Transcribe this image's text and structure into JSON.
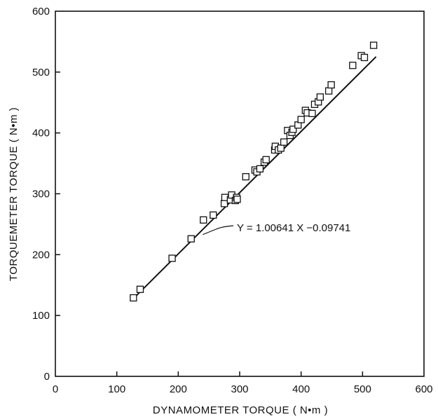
{
  "chart_data": {
    "type": "scatter",
    "xlabel": "DYNAMOMETER TORQUE ( N•m )",
    "ylabel": "TORQUEMETER TORQUE ( N•m )",
    "xlim": [
      0,
      600
    ],
    "ylim": [
      0,
      600
    ],
    "x_ticks": [
      0,
      100,
      200,
      300,
      400,
      500,
      600
    ],
    "y_ticks": [
      0,
      100,
      200,
      300,
      400,
      500,
      600
    ],
    "x_tick_labels": [
      "0",
      "100",
      "200",
      "300",
      "400",
      "500",
      "600"
    ],
    "y_tick_labels": [
      "0",
      "100",
      "200",
      "300",
      "400",
      "500",
      "600"
    ],
    "grid": false,
    "marker": "open-square",
    "points": [
      [
        127,
        129
      ],
      [
        138,
        143
      ],
      [
        190,
        194
      ],
      [
        221,
        226
      ],
      [
        241,
        257
      ],
      [
        257,
        265
      ],
      [
        275,
        284
      ],
      [
        276,
        294
      ],
      [
        285,
        290
      ],
      [
        287,
        298
      ],
      [
        293,
        289
      ],
      [
        295,
        294
      ],
      [
        296,
        291
      ],
      [
        310,
        328
      ],
      [
        325,
        339
      ],
      [
        328,
        336
      ],
      [
        333,
        341
      ],
      [
        340,
        352
      ],
      [
        343,
        356
      ],
      [
        357,
        372
      ],
      [
        358,
        378
      ],
      [
        363,
        372
      ],
      [
        367,
        375
      ],
      [
        372,
        385
      ],
      [
        378,
        404
      ],
      [
        382,
        396
      ],
      [
        385,
        401
      ],
      [
        387,
        406
      ],
      [
        395,
        413
      ],
      [
        400,
        422
      ],
      [
        407,
        437
      ],
      [
        410,
        433
      ],
      [
        418,
        432
      ],
      [
        422,
        447
      ],
      [
        428,
        451
      ],
      [
        431,
        459
      ],
      [
        445,
        469
      ],
      [
        449,
        479
      ],
      [
        484,
        511
      ],
      [
        498,
        527
      ],
      [
        503,
        524
      ],
      [
        518,
        544
      ]
    ],
    "fit_line": {
      "slope": 1.00641,
      "intercept": -0.09741,
      "x_range": [
        125,
        522
      ]
    },
    "annotation": {
      "text": "Y = 1.00641 X  −0.09741",
      "points_to": [
        240,
        233
      ]
    }
  }
}
